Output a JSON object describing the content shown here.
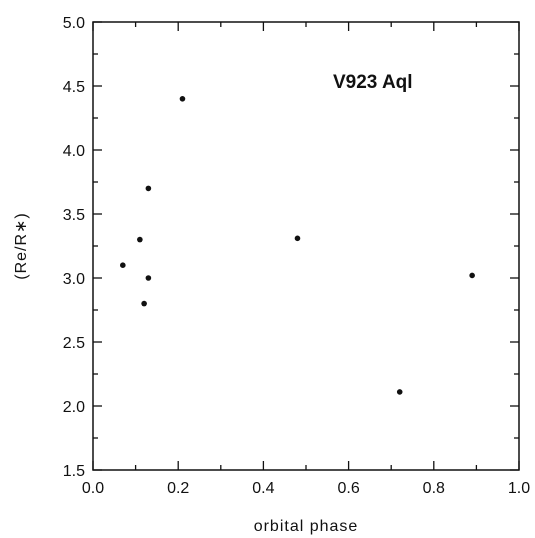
{
  "chart_data": {
    "type": "scatter",
    "title": "",
    "xlabel": "orbital phase",
    "ylabel": "(Re/R∗)",
    "xlim": [
      0.0,
      1.0
    ],
    "ylim": [
      1.5,
      5.0
    ],
    "x_ticks": [
      0.0,
      0.2,
      0.4,
      0.6,
      0.8,
      1.0
    ],
    "x_tick_labels": [
      "0.0",
      "0.2",
      "0.4",
      "0.6",
      "0.8",
      "1.0"
    ],
    "y_ticks": [
      1.5,
      2.0,
      2.5,
      3.0,
      3.5,
      4.0,
      4.5,
      5.0
    ],
    "y_tick_labels": [
      "1.5",
      "2.0",
      "2.5",
      "3.0",
      "3.5",
      "4.0",
      "4.5",
      "5.0"
    ],
    "annotation": "V923 Aql",
    "grid": false,
    "legend": "none",
    "points": [
      {
        "x": 0.07,
        "y": 3.1
      },
      {
        "x": 0.11,
        "y": 3.3
      },
      {
        "x": 0.12,
        "y": 2.8
      },
      {
        "x": 0.13,
        "y": 3.7
      },
      {
        "x": 0.13,
        "y": 3.0
      },
      {
        "x": 0.21,
        "y": 4.4
      },
      {
        "x": 0.48,
        "y": 3.31
      },
      {
        "x": 0.72,
        "y": 2.11
      },
      {
        "x": 0.89,
        "y": 3.02
      }
    ],
    "marker_color": "#111111"
  }
}
